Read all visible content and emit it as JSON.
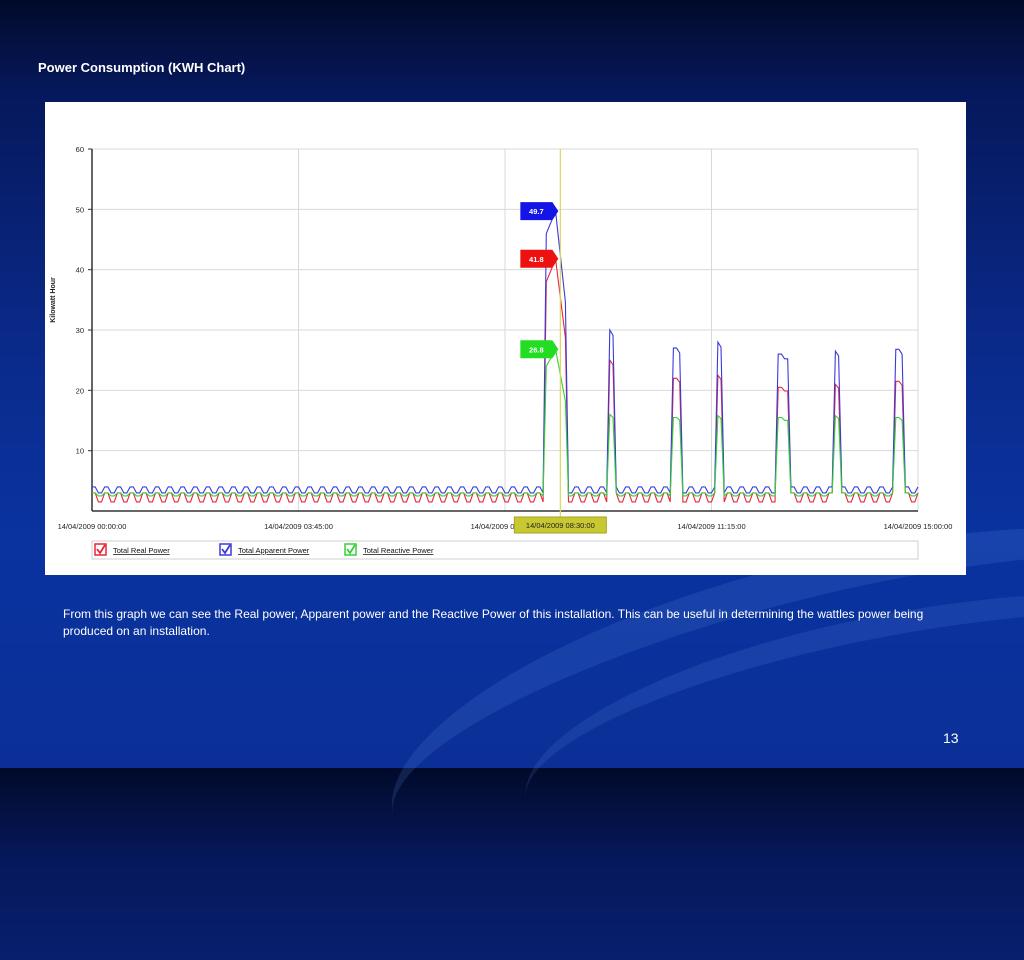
{
  "slide": {
    "title": "Power Consumption (KWH Chart)",
    "caption": "From this graph we can see the Real power, Apparent power and the Reactive Power of this installation. This can be useful in determining the wattles power being produced on an installation.",
    "page_number": "13"
  },
  "chart_data": {
    "type": "line",
    "title": "",
    "xlabel": "",
    "ylabel": "Kilowatt Hour",
    "ylim": [
      0,
      60
    ],
    "yticks": [
      10,
      20,
      30,
      40,
      50,
      60
    ],
    "x_range": [
      "14/04/2009 00:00:00",
      "14/04/2009 15:00:00"
    ],
    "xtick_labels": [
      "14/04/2009 00:00:00",
      "14/04/2009 03:45:00",
      "14/04/2009 07:30:00",
      "14/04/2009 11:15:00",
      "14/04/2009 15:00:00"
    ],
    "cursor": {
      "label": "14/04/2009 08:30:00",
      "x_fraction": 0.567
    },
    "grid": true,
    "legend_position": "bottom",
    "callouts": [
      {
        "series": "Total Apparent Power",
        "value": "49.7",
        "color": "#1414e6"
      },
      {
        "series": "Total Real Power",
        "value": "41.8",
        "color": "#ee1111"
      },
      {
        "series": "Total Reactive Power",
        "value": "26.8",
        "color": "#22dd22"
      }
    ],
    "series": [
      {
        "name": "Total Real Power",
        "color": "#e8253a",
        "baseline": [
          1.5,
          3
        ],
        "peaks": [
          {
            "start": 0.55,
            "end": 0.575,
            "top": 38,
            "max": 41.8
          },
          {
            "start": 0.625,
            "end": 0.633,
            "top": 25,
            "max": 25
          },
          {
            "start": 0.703,
            "end": 0.713,
            "top": 22,
            "max": 22
          },
          {
            "start": 0.755,
            "end": 0.763,
            "top": 22.5,
            "max": 22.5
          },
          {
            "start": 0.83,
            "end": 0.843,
            "top": 20.5,
            "max": 20.5
          },
          {
            "start": 0.898,
            "end": 0.906,
            "top": 21,
            "max": 21
          },
          {
            "start": 0.972,
            "end": 0.982,
            "top": 21.5,
            "max": 21.5
          }
        ]
      },
      {
        "name": "Total Apparent Power",
        "color": "#3a3ad8",
        "baseline": [
          3,
          4
        ],
        "peaks": [
          {
            "start": 0.55,
            "end": 0.575,
            "top": 46,
            "max": 49.7
          },
          {
            "start": 0.625,
            "end": 0.633,
            "top": 30,
            "max": 30
          },
          {
            "start": 0.703,
            "end": 0.713,
            "top": 27,
            "max": 27
          },
          {
            "start": 0.755,
            "end": 0.763,
            "top": 28,
            "max": 28
          },
          {
            "start": 0.83,
            "end": 0.843,
            "top": 26,
            "max": 26
          },
          {
            "start": 0.898,
            "end": 0.906,
            "top": 26.5,
            "max": 26.5
          },
          {
            "start": 0.972,
            "end": 0.982,
            "top": 26.8,
            "max": 26.8
          }
        ]
      },
      {
        "name": "Total Reactive Power",
        "color": "#35d035",
        "baseline": [
          2.5,
          3
        ],
        "peaks": [
          {
            "start": 0.55,
            "end": 0.575,
            "top": 24,
            "max": 26.8
          },
          {
            "start": 0.625,
            "end": 0.633,
            "top": 16,
            "max": 16
          },
          {
            "start": 0.703,
            "end": 0.713,
            "top": 15.5,
            "max": 15.5
          },
          {
            "start": 0.755,
            "end": 0.763,
            "top": 15.8,
            "max": 15.8
          },
          {
            "start": 0.83,
            "end": 0.843,
            "top": 15.5,
            "max": 15.5
          },
          {
            "start": 0.898,
            "end": 0.906,
            "top": 15.8,
            "max": 15.8
          },
          {
            "start": 0.972,
            "end": 0.982,
            "top": 15.5,
            "max": 15.5
          }
        ]
      }
    ]
  }
}
